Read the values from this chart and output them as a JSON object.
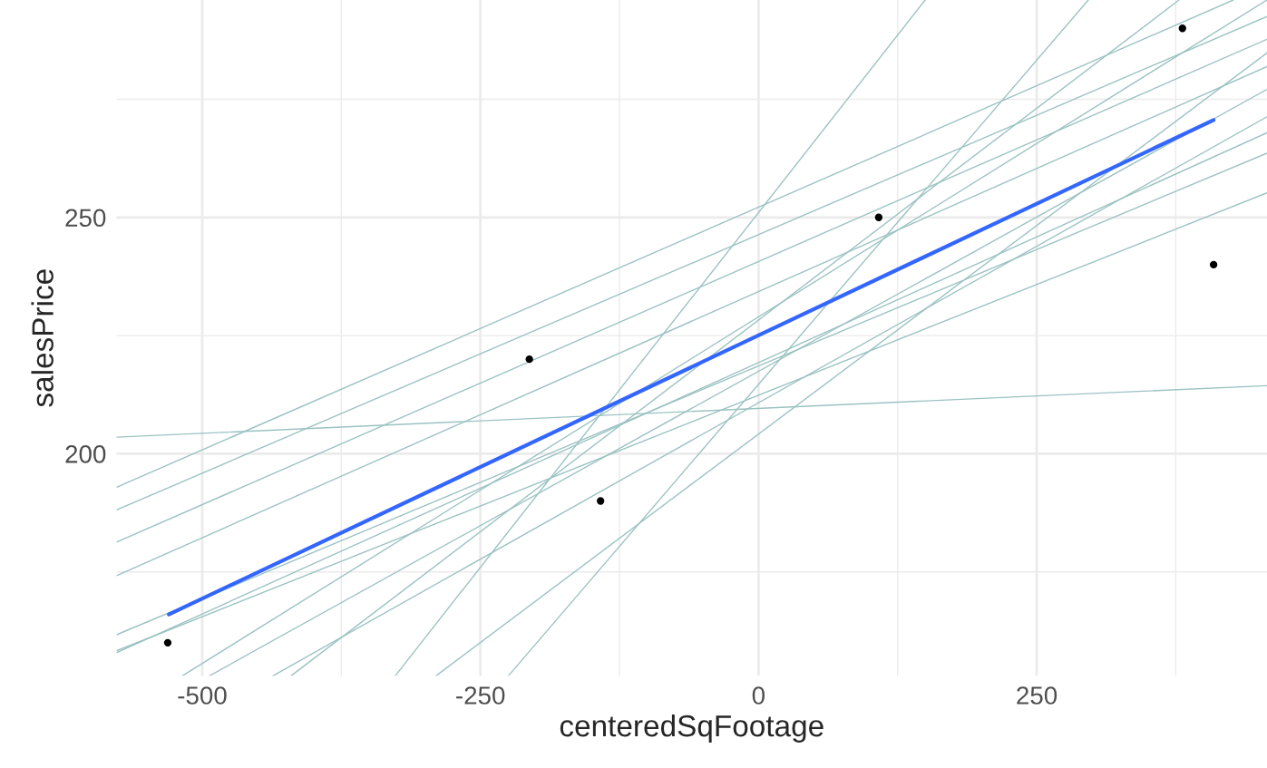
{
  "chart_data": {
    "type": "line",
    "xlabel": "centeredSqFootage",
    "ylabel": "salesPrice",
    "xlim": [
      -577,
      457
    ],
    "ylim": [
      153,
      296
    ],
    "xticks": [
      -500,
      {
        "value": -375,
        "label": null
      },
      -250,
      {
        "value": -125,
        "label": null
      },
      0,
      {
        "value": 125,
        "label": null
      },
      250,
      {
        "value": 375,
        "label": null
      }
    ],
    "yticks": [
      {
        "value": 175,
        "label": null
      },
      200,
      {
        "value": 225,
        "label": null
      },
      250,
      {
        "value": 275,
        "label": null
      }
    ],
    "grid": true,
    "legend": false,
    "series": [
      {
        "color": "#9cc2c2",
        "x": [
          -577,
          457
        ],
        "values": [
          203.5,
          214.4
        ]
      },
      {
        "color": "#9cc2c2",
        "x": [
          -326.5,
          149.8
        ],
        "values": [
          153,
          296
        ]
      },
      {
        "color": "#9cc2c2",
        "x": [
          -577,
          426.7
        ],
        "values": [
          192.9,
          296
        ]
      },
      {
        "color": "#9cc2c2",
        "x": [
          -577,
          457
        ],
        "values": [
          188.1,
          292.5
        ]
      },
      {
        "color": "#9cc2c2",
        "x": [
          -577,
          457
        ],
        "values": [
          181.3,
          287.7
        ]
      },
      {
        "color": "#9cc2c2",
        "x": [
          -577,
          457
        ],
        "values": [
          174.2,
          281.9
        ]
      },
      {
        "color": "#9cc2c2",
        "x": [
          -577,
          457
        ],
        "values": [
          157.9,
          267.9
        ]
      },
      {
        "color": "#9cc2c2",
        "x": [
          -577,
          457
        ],
        "values": [
          158.3,
          255.2
        ]
      },
      {
        "color": "#9cc2c2",
        "x": [
          -517.9,
          457
        ],
        "values": [
          153,
          296
        ]
      },
      {
        "color": "#9cc2c2",
        "x": [
          -493.5,
          457
        ],
        "values": [
          153,
          277.1
        ]
      },
      {
        "color": "#9cc2c2",
        "x": [
          -420.2,
          377.9
        ],
        "values": [
          153,
          296
        ]
      },
      {
        "color": "#9cc2c2",
        "x": [
          -436.5,
          457
        ],
        "values": [
          153,
          271.3
        ]
      },
      {
        "color": "#9cc2c2",
        "x": [
          -289.9,
          457
        ],
        "values": [
          153,
          284.8
        ]
      },
      {
        "color": "#9cc2c2",
        "x": [
          -577,
          457
        ],
        "values": [
          161.7,
          263.6
        ]
      },
      {
        "color": "#9cc2c2",
        "x": [
          -224.8,
          296.4
        ],
        "values": [
          153,
          296
        ]
      },
      {
        "color": "#3366ff",
        "x": [
          -530,
          409
        ],
        "values": [
          166,
          270.6
        ]
      },
      {
        "type": "scatter",
        "color": "#000000",
        "x": [
          -531,
          -206,
          -142,
          108,
          381,
          409
        ],
        "values": [
          160,
          220,
          190,
          250,
          290,
          240
        ]
      }
    ]
  }
}
